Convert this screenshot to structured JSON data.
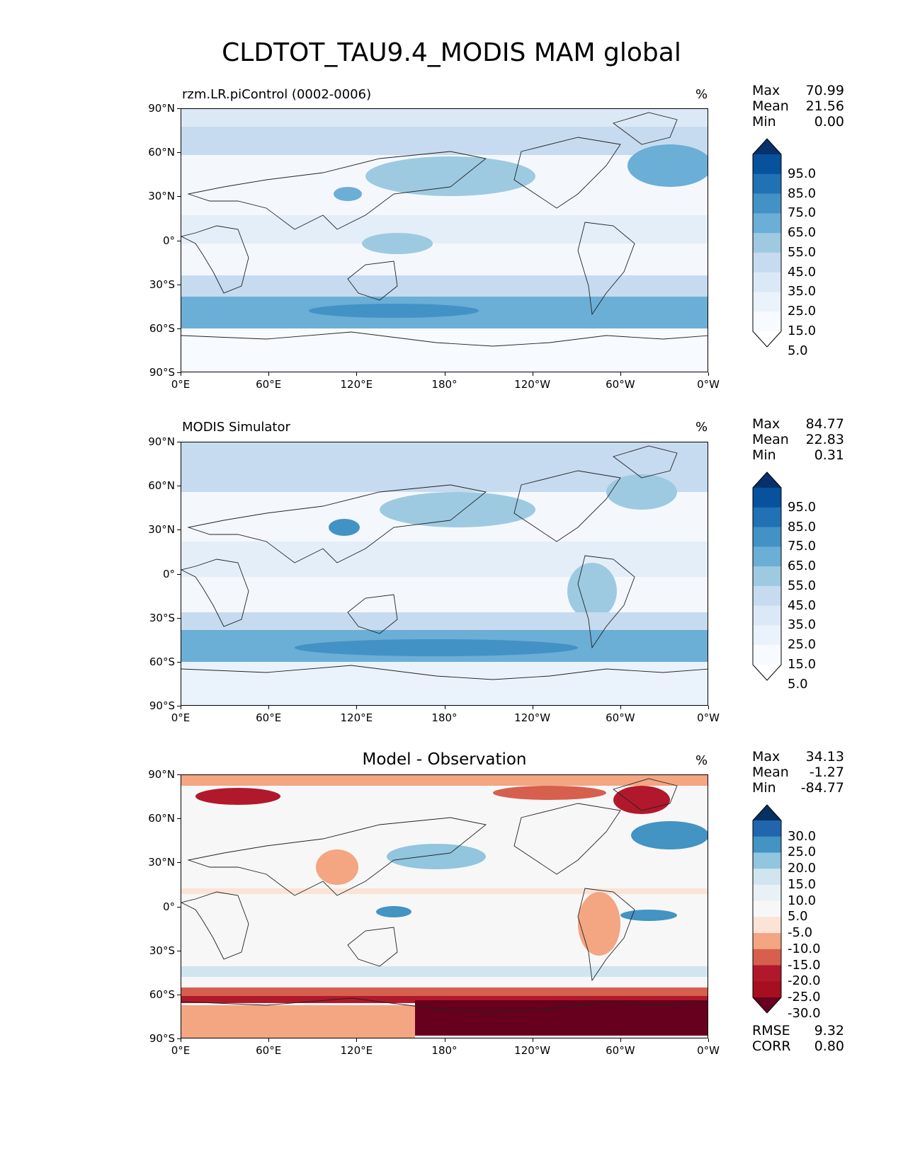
{
  "title": "CLDTOT_TAU9.4_MODIS MAM global",
  "axes": {
    "lat_ticks": [
      "90°N",
      "60°N",
      "30°N",
      "0°",
      "30°S",
      "60°S",
      "90°S"
    ],
    "lon_ticks": [
      "0°E",
      "60°E",
      "120°E",
      "180°",
      "120°W",
      "60°W",
      "0°W"
    ]
  },
  "panels": [
    {
      "title": "rzm.LR.piControl (0002-0006)",
      "units": "%",
      "stats": {
        "max_label": "Max",
        "max": "70.99",
        "mean_label": "Mean",
        "mean": "21.56",
        "min_label": "Min",
        "min": "0.00"
      },
      "colorbar": {
        "labels": [
          "95.0",
          "85.0",
          "75.0",
          "65.0",
          "55.0",
          "45.0",
          "35.0",
          "25.0",
          "15.0",
          "5.0"
        ],
        "colors": [
          "#08306b",
          "#08519c",
          "#2171b5",
          "#4292c6",
          "#6baed6",
          "#9ecae1",
          "#c6dbef",
          "#dbe9f6",
          "#eaf3fb",
          "#f7fbff",
          "#ffffff"
        ]
      }
    },
    {
      "title": "MODIS Simulator",
      "units": "%",
      "stats": {
        "max_label": "Max",
        "max": "84.77",
        "mean_label": "Mean",
        "mean": "22.83",
        "min_label": "Min",
        "min": "0.31"
      },
      "colorbar": {
        "labels": [
          "95.0",
          "85.0",
          "75.0",
          "65.0",
          "55.0",
          "45.0",
          "35.0",
          "25.0",
          "15.0",
          "5.0"
        ],
        "colors": [
          "#08306b",
          "#08519c",
          "#2171b5",
          "#4292c6",
          "#6baed6",
          "#9ecae1",
          "#c6dbef",
          "#dbe9f6",
          "#eaf3fb",
          "#f7fbff",
          "#ffffff"
        ]
      }
    },
    {
      "title": "Model - Observation",
      "units": "%",
      "stats": {
        "max_label": "Max",
        "max": "34.13",
        "mean_label": "Mean",
        "mean": "-1.27",
        "min_label": "Min",
        "min": "-84.77"
      },
      "metrics": {
        "rmse_label": "RMSE",
        "rmse": "9.32",
        "corr_label": "CORR",
        "corr": "0.80"
      },
      "colorbar": {
        "labels": [
          "30.0",
          "25.0",
          "20.0",
          "15.0",
          "10.0",
          "5.0",
          "-5.0",
          "-10.0",
          "-15.0",
          "-20.0",
          "-25.0",
          "-30.0"
        ],
        "colors": [
          "#053061",
          "#2166ac",
          "#4393c3",
          "#92c5de",
          "#d1e5f0",
          "#e8f1f6",
          "#f7f7f7",
          "#fbe3d6",
          "#f4a582",
          "#d6604d",
          "#b2182b",
          "#a50f1f",
          "#67001f"
        ]
      }
    }
  ]
}
